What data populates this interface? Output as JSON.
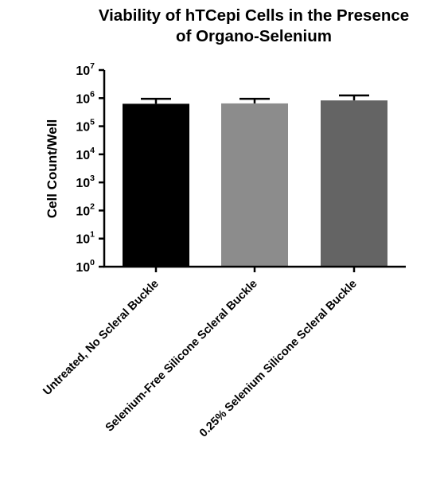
{
  "chart_data": {
    "type": "bar",
    "title": [
      "Viability of hTCepi Cells in the Presence",
      "of Organo-Selenium"
    ],
    "xlabel": "",
    "ylabel": "Cell Count/Well",
    "yscale": "log",
    "ylim": [
      1,
      10000000
    ],
    "yticks": [
      {
        "base": "10",
        "exp": "0",
        "value": 1
      },
      {
        "base": "10",
        "exp": "1",
        "value": 10
      },
      {
        "base": "10",
        "exp": "2",
        "value": 100
      },
      {
        "base": "10",
        "exp": "3",
        "value": 1000
      },
      {
        "base": "10",
        "exp": "4",
        "value": 10000
      },
      {
        "base": "10",
        "exp": "5",
        "value": 100000
      },
      {
        "base": "10",
        "exp": "6",
        "value": 1000000
      },
      {
        "base": "10",
        "exp": "7",
        "value": 10000000
      }
    ],
    "categories": [
      "Untreated, No Scleral Buckle",
      "Selenium-Free Silicone Scleral Buckle",
      "0.25% Selenium Silicone Scleral Buckle"
    ],
    "values": [
      630000,
      650000,
      830000
    ],
    "error_upper": [
      950000,
      950000,
      1250000
    ],
    "bar_colors": [
      "#000000",
      "#8c8c8c",
      "#646464"
    ],
    "grid": false,
    "legend": "none"
  }
}
